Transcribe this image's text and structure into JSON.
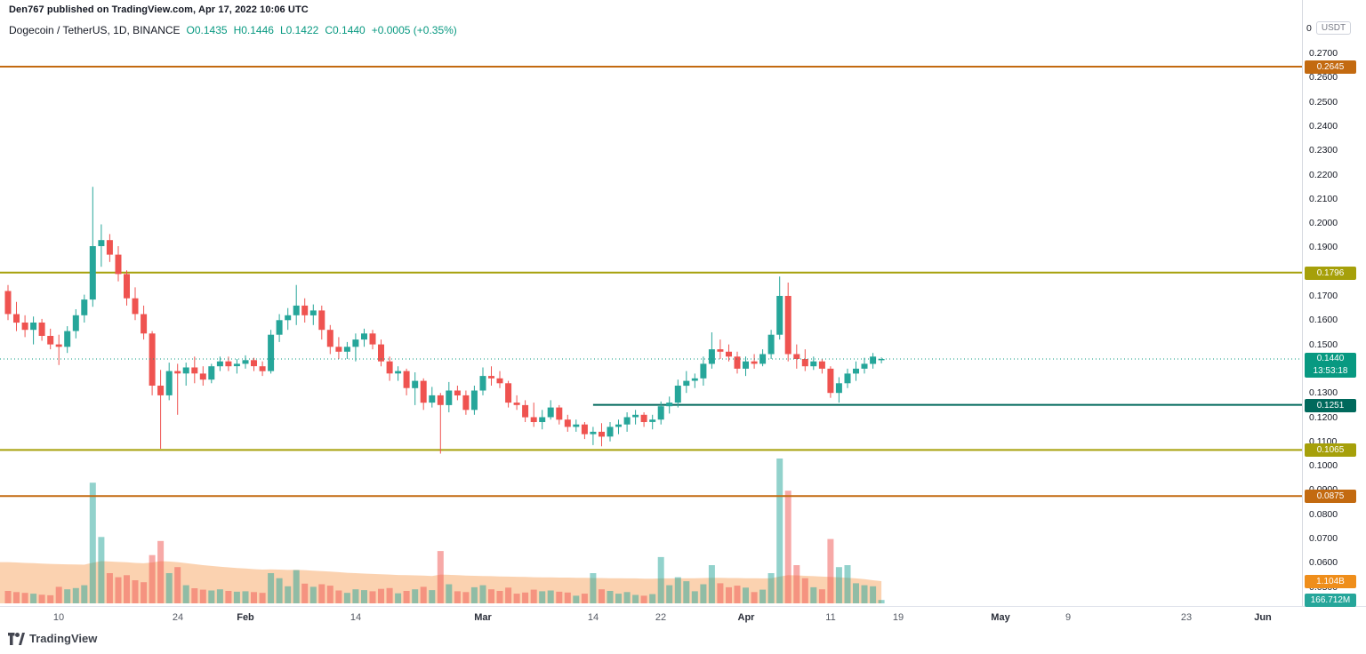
{
  "header": {
    "attribution": "Den767 published on TradingView.com, Apr 17, 2022 10:06 UTC",
    "symbol_title": "Dogecoin / TetherUS, 1D, BINANCE",
    "ohlc": {
      "open": "O0.1435",
      "high": "H0.1446",
      "low": "L0.1422",
      "close": "C0.1440",
      "change": "+0.0005 (+0.35%)"
    }
  },
  "price_axis": {
    "top_value": "0",
    "currency_button": "USDT",
    "tick_max": 0.27,
    "tick_min": 0.05,
    "tick_step": 0.01,
    "current_price_label": {
      "price": "0.1440",
      "countdown": "13:53:18"
    },
    "volume_labels": [
      {
        "text": "1.104B",
        "color": "#ef8e1b",
        "value_b": 1.104
      },
      {
        "text": "166.712M",
        "color": "#26a69a",
        "value_m": 166.712
      }
    ]
  },
  "time_axis": {
    "labels": [
      {
        "text": "10",
        "day": 6
      },
      {
        "text": "24",
        "day": 20
      },
      {
        "text": "Feb",
        "day": 28,
        "major": true
      },
      {
        "text": "14",
        "day": 41
      },
      {
        "text": "Mar",
        "day": 56,
        "major": true
      },
      {
        "text": "14",
        "day": 69
      },
      {
        "text": "22",
        "day": 77
      },
      {
        "text": "Apr",
        "day": 87,
        "major": true
      },
      {
        "text": "11",
        "day": 97
      },
      {
        "text": "19",
        "day": 105
      },
      {
        "text": "May",
        "day": 117,
        "major": true
      },
      {
        "text": "9",
        "day": 125
      },
      {
        "text": "23",
        "day": 139
      },
      {
        "text": "Jun",
        "day": 148,
        "major": true
      }
    ]
  },
  "footer": {
    "logo_text": "TradingView"
  },
  "chart_data": {
    "type": "candlestick",
    "title": "Dogecoin / TetherUS, 1D, BINANCE",
    "timeframe": "1D",
    "price_range_shown": [
      0.05,
      0.27
    ],
    "grid": false,
    "up_color": "#26a69a",
    "down_color": "#ef5350",
    "current_price": 0.144,
    "current_price_color": "#089981",
    "volume_unit": "millions of DOGE",
    "volume_ma_unit": "billions of DOGE",
    "volume_ma_color": "#f59342",
    "levels": [
      {
        "label": "0.2645",
        "price": 0.2645,
        "color": "#c36a10",
        "starts_at_day": 0
      },
      {
        "label": "0.1796",
        "price": 0.1796,
        "color": "#a6a00a",
        "starts_at_day": 0
      },
      {
        "label": "0.1251",
        "price": 0.1251,
        "color": "#00695c",
        "starts_at_day": 69
      },
      {
        "label": "0.1065",
        "price": 0.1065,
        "color": "#a6a00a",
        "starts_at_day": 0
      },
      {
        "label": "0.0875",
        "price": 0.0875,
        "color": "#c36a10",
        "starts_at_day": 0
      }
    ],
    "columns": [
      "date",
      "open",
      "high",
      "low",
      "close",
      "volume_m",
      "volume_ma_b"
    ],
    "candles": [
      [
        "2022-01-04",
        0.172,
        0.1745,
        0.16,
        0.1625,
        620,
        2.05
      ],
      [
        "2022-01-05",
        0.1625,
        0.1675,
        0.1555,
        0.159,
        560,
        2.03
      ],
      [
        "2022-01-06",
        0.159,
        0.162,
        0.153,
        0.156,
        520,
        2.01
      ],
      [
        "2022-01-07",
        0.156,
        0.1615,
        0.15,
        0.159,
        480,
        2.0
      ],
      [
        "2022-01-08",
        0.159,
        0.1605,
        0.1515,
        0.1535,
        430,
        1.98
      ],
      [
        "2022-01-09",
        0.1535,
        0.1565,
        0.148,
        0.15,
        400,
        1.96
      ],
      [
        "2022-01-10",
        0.15,
        0.154,
        0.1415,
        0.149,
        820,
        1.95
      ],
      [
        "2022-01-11",
        0.149,
        0.1575,
        0.1465,
        0.1555,
        700,
        1.94
      ],
      [
        "2022-01-12",
        0.1555,
        0.1645,
        0.1525,
        0.162,
        760,
        1.93
      ],
      [
        "2022-01-13",
        0.162,
        0.1705,
        0.159,
        0.1685,
        900,
        1.92
      ],
      [
        "2022-01-14",
        0.1685,
        0.215,
        0.1655,
        0.1905,
        6000,
        2.02
      ],
      [
        "2022-01-15",
        0.1905,
        0.1995,
        0.182,
        0.193,
        3300,
        2.1
      ],
      [
        "2022-01-16",
        0.193,
        0.1955,
        0.184,
        0.187,
        1500,
        2.08
      ],
      [
        "2022-01-17",
        0.187,
        0.1905,
        0.176,
        0.179,
        1300,
        2.06
      ],
      [
        "2022-01-18",
        0.179,
        0.1805,
        0.166,
        0.169,
        1400,
        2.04
      ],
      [
        "2022-01-19",
        0.169,
        0.1735,
        0.16,
        0.1625,
        1150,
        2.01
      ],
      [
        "2022-01-20",
        0.1625,
        0.166,
        0.152,
        0.1545,
        1050,
        1.99
      ],
      [
        "2022-01-21",
        0.1545,
        0.1555,
        0.129,
        0.133,
        2400,
        2.03
      ],
      [
        "2022-01-22",
        0.133,
        0.1395,
        0.107,
        0.129,
        3100,
        2.1
      ],
      [
        "2022-01-23",
        0.129,
        0.1425,
        0.127,
        0.139,
        1500,
        2.08
      ],
      [
        "2022-01-24",
        0.139,
        0.142,
        0.121,
        0.138,
        1800,
        2.05
      ],
      [
        "2022-01-25",
        0.138,
        0.1425,
        0.133,
        0.1405,
        900,
        2.0
      ],
      [
        "2022-01-26",
        0.1405,
        0.145,
        0.134,
        0.138,
        750,
        1.95
      ],
      [
        "2022-01-27",
        0.138,
        0.141,
        0.133,
        0.1355,
        680,
        1.9
      ],
      [
        "2022-01-28",
        0.1355,
        0.142,
        0.134,
        0.141,
        640,
        1.86
      ],
      [
        "2022-01-29",
        0.141,
        0.145,
        0.139,
        0.143,
        700,
        1.82
      ],
      [
        "2022-01-30",
        0.143,
        0.145,
        0.139,
        0.141,
        620,
        1.79
      ],
      [
        "2022-01-31",
        0.141,
        0.144,
        0.138,
        0.142,
        580,
        1.76
      ],
      [
        "2022-02-01",
        0.142,
        0.1455,
        0.14,
        0.1435,
        600,
        1.73
      ],
      [
        "2022-02-02",
        0.1435,
        0.1445,
        0.139,
        0.141,
        560,
        1.7
      ],
      [
        "2022-02-03",
        0.141,
        0.143,
        0.137,
        0.139,
        520,
        1.68
      ],
      [
        "2022-02-04",
        0.139,
        0.156,
        0.138,
        0.154,
        1500,
        1.69
      ],
      [
        "2022-02-05",
        0.154,
        0.1625,
        0.151,
        0.16,
        1250,
        1.68
      ],
      [
        "2022-02-06",
        0.16,
        0.165,
        0.156,
        0.162,
        850,
        1.66
      ],
      [
        "2022-02-07",
        0.162,
        0.1745,
        0.158,
        0.166,
        1650,
        1.67
      ],
      [
        "2022-02-08",
        0.166,
        0.169,
        0.159,
        0.162,
        980,
        1.65
      ],
      [
        "2022-02-09",
        0.162,
        0.1665,
        0.158,
        0.164,
        820,
        1.62
      ],
      [
        "2022-02-10",
        0.164,
        0.166,
        0.152,
        0.156,
        950,
        1.6
      ],
      [
        "2022-02-11",
        0.156,
        0.158,
        0.146,
        0.149,
        880,
        1.58
      ],
      [
        "2022-02-12",
        0.149,
        0.153,
        0.144,
        0.147,
        640,
        1.55
      ],
      [
        "2022-02-13",
        0.147,
        0.151,
        0.144,
        0.149,
        520,
        1.52
      ],
      [
        "2022-02-14",
        0.149,
        0.1545,
        0.143,
        0.152,
        700,
        1.5
      ],
      [
        "2022-02-15",
        0.152,
        0.1565,
        0.149,
        0.1545,
        660,
        1.48
      ],
      [
        "2022-02-16",
        0.1545,
        0.156,
        0.148,
        0.15,
        600,
        1.46
      ],
      [
        "2022-02-17",
        0.15,
        0.152,
        0.141,
        0.143,
        720,
        1.45
      ],
      [
        "2022-02-18",
        0.143,
        0.145,
        0.135,
        0.138,
        760,
        1.43
      ],
      [
        "2022-02-19",
        0.138,
        0.141,
        0.135,
        0.139,
        500,
        1.41
      ],
      [
        "2022-02-20",
        0.139,
        0.14,
        0.129,
        0.132,
        620,
        1.4
      ],
      [
        "2022-02-21",
        0.132,
        0.1385,
        0.125,
        0.135,
        700,
        1.39
      ],
      [
        "2022-02-22",
        0.135,
        0.136,
        0.123,
        0.126,
        820,
        1.38
      ],
      [
        "2022-02-23",
        0.126,
        0.1325,
        0.124,
        0.129,
        660,
        1.36
      ],
      [
        "2022-02-24",
        0.129,
        0.13,
        0.105,
        0.125,
        2600,
        1.43
      ],
      [
        "2022-02-25",
        0.125,
        0.1345,
        0.122,
        0.131,
        950,
        1.42
      ],
      [
        "2022-02-26",
        0.131,
        0.133,
        0.127,
        0.129,
        600,
        1.4
      ],
      [
        "2022-02-27",
        0.129,
        0.131,
        0.121,
        0.123,
        560,
        1.38
      ],
      [
        "2022-02-28",
        0.123,
        0.133,
        0.121,
        0.131,
        800,
        1.37
      ],
      [
        "2022-03-01",
        0.131,
        0.1405,
        0.129,
        0.137,
        900,
        1.36
      ],
      [
        "2022-03-02",
        0.137,
        0.141,
        0.133,
        0.136,
        700,
        1.35
      ],
      [
        "2022-03-03",
        0.136,
        0.139,
        0.132,
        0.134,
        620,
        1.34
      ],
      [
        "2022-03-04",
        0.134,
        0.135,
        0.124,
        0.126,
        780,
        1.33
      ],
      [
        "2022-03-05",
        0.126,
        0.129,
        0.123,
        0.125,
        480,
        1.32
      ],
      [
        "2022-03-06",
        0.125,
        0.127,
        0.118,
        0.12,
        540,
        1.31
      ],
      [
        "2022-03-07",
        0.12,
        0.126,
        0.116,
        0.118,
        680,
        1.3
      ],
      [
        "2022-03-08",
        0.118,
        0.123,
        0.115,
        0.12,
        600,
        1.29
      ],
      [
        "2022-03-09",
        0.12,
        0.127,
        0.119,
        0.124,
        640,
        1.29
      ],
      [
        "2022-03-10",
        0.124,
        0.125,
        0.117,
        0.119,
        580,
        1.28
      ],
      [
        "2022-03-11",
        0.119,
        0.121,
        0.114,
        0.116,
        540,
        1.28
      ],
      [
        "2022-03-12",
        0.116,
        0.119,
        0.114,
        0.117,
        380,
        1.27
      ],
      [
        "2022-03-13",
        0.117,
        0.118,
        0.111,
        0.113,
        480,
        1.27
      ],
      [
        "2022-03-14",
        0.113,
        0.116,
        0.1085,
        0.114,
        1500,
        1.26
      ],
      [
        "2022-03-15",
        0.114,
        0.1175,
        0.108,
        0.112,
        700,
        1.26
      ],
      [
        "2022-03-16",
        0.112,
        0.118,
        0.11,
        0.116,
        620,
        1.25
      ],
      [
        "2022-03-17",
        0.116,
        0.119,
        0.113,
        0.117,
        480,
        1.25
      ],
      [
        "2022-03-18",
        0.117,
        0.122,
        0.114,
        0.12,
        560,
        1.24
      ],
      [
        "2022-03-19",
        0.12,
        0.123,
        0.117,
        0.121,
        420,
        1.24
      ],
      [
        "2022-03-20",
        0.121,
        0.122,
        0.116,
        0.118,
        380,
        1.23
      ],
      [
        "2022-03-21",
        0.118,
        0.121,
        0.115,
        0.119,
        460,
        1.23
      ],
      [
        "2022-03-22",
        0.119,
        0.1265,
        0.117,
        0.1245,
        2300,
        1.24
      ],
      [
        "2022-03-23",
        0.1245,
        0.1285,
        0.1215,
        0.126,
        900,
        1.24
      ],
      [
        "2022-03-24",
        0.126,
        0.1355,
        0.124,
        0.133,
        1300,
        1.25
      ],
      [
        "2022-03-25",
        0.133,
        0.139,
        0.13,
        0.135,
        1100,
        1.25
      ],
      [
        "2022-03-26",
        0.135,
        0.138,
        0.132,
        0.136,
        600,
        1.25
      ],
      [
        "2022-03-27",
        0.136,
        0.145,
        0.133,
        0.142,
        950,
        1.26
      ],
      [
        "2022-03-28",
        0.142,
        0.155,
        0.14,
        0.148,
        1900,
        1.27
      ],
      [
        "2022-03-29",
        0.148,
        0.152,
        0.144,
        0.147,
        1000,
        1.27
      ],
      [
        "2022-03-30",
        0.147,
        0.15,
        0.143,
        0.145,
        800,
        1.26
      ],
      [
        "2022-03-31",
        0.145,
        0.147,
        0.138,
        0.14,
        880,
        1.26
      ],
      [
        "2022-04-01",
        0.14,
        0.145,
        0.137,
        0.143,
        780,
        1.25
      ],
      [
        "2022-04-02",
        0.143,
        0.146,
        0.14,
        0.142,
        560,
        1.25
      ],
      [
        "2022-04-03",
        0.142,
        0.148,
        0.141,
        0.146,
        680,
        1.24
      ],
      [
        "2022-04-04",
        0.146,
        0.156,
        0.144,
        0.154,
        1500,
        1.25
      ],
      [
        "2022-04-05",
        0.154,
        0.178,
        0.152,
        0.17,
        7200,
        1.33
      ],
      [
        "2022-04-06",
        0.17,
        0.1755,
        0.143,
        0.146,
        5600,
        1.4
      ],
      [
        "2022-04-07",
        0.146,
        0.15,
        0.14,
        0.144,
        1900,
        1.39
      ],
      [
        "2022-04-08",
        0.144,
        0.148,
        0.139,
        0.141,
        1250,
        1.37
      ],
      [
        "2022-04-09",
        0.141,
        0.145,
        0.1395,
        0.143,
        800,
        1.35
      ],
      [
        "2022-04-10",
        0.143,
        0.144,
        0.138,
        0.14,
        700,
        1.33
      ],
      [
        "2022-04-11",
        0.14,
        0.141,
        0.128,
        0.13,
        3200,
        1.31
      ],
      [
        "2022-04-12",
        0.13,
        0.1365,
        0.126,
        0.134,
        1800,
        1.29
      ],
      [
        "2022-04-13",
        0.134,
        0.14,
        0.132,
        0.138,
        1900,
        1.27
      ],
      [
        "2022-04-14",
        0.138,
        0.143,
        0.135,
        0.14,
        1000,
        1.24
      ],
      [
        "2022-04-15",
        0.14,
        0.1445,
        0.138,
        0.142,
        900,
        1.2
      ],
      [
        "2022-04-16",
        0.142,
        0.1465,
        0.14,
        0.145,
        850,
        1.15
      ],
      [
        "2022-04-17",
        0.1435,
        0.1446,
        0.1422,
        0.144,
        167,
        1.104
      ]
    ]
  }
}
